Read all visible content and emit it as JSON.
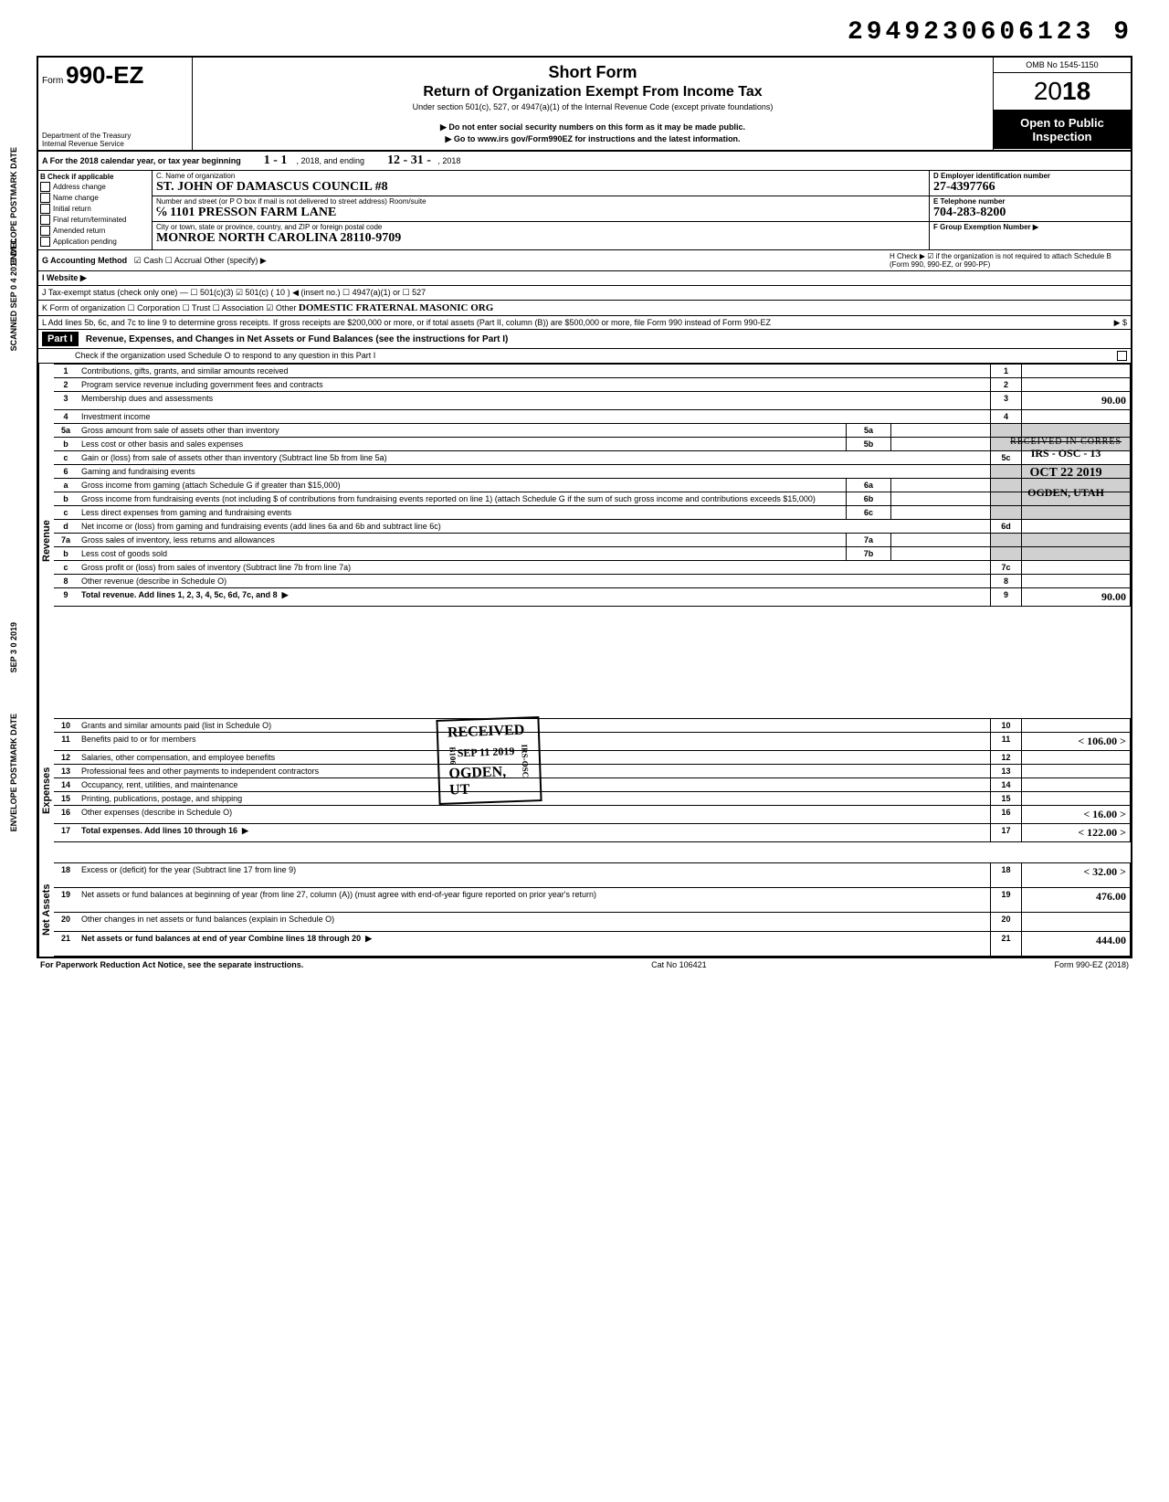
{
  "doc_number": "2949230606123 9",
  "form": {
    "form_label": "Form",
    "form_number": "990-EZ",
    "dept": "Department of the Treasury\nInternal Revenue Service",
    "title": "Short Form",
    "subtitle": "Return of Organization Exempt From Income Tax",
    "under": "Under section 501(c), 527, or 4947(a)(1) of the Internal Revenue Code (except private foundations)",
    "warn": "▶ Do not enter social security numbers on this form as it may be made public.",
    "goto": "▶ Go to www.irs gov/Form990EZ for instructions and the latest information.",
    "omb": "OMB No 1545-1150",
    "year_prefix": "20",
    "year_bold": "18",
    "open": "Open to Public Inspection"
  },
  "row_a": {
    "label": "A For the 2018 calendar year, or tax year beginning",
    "begin": "1 - 1",
    "mid": ", 2018, and ending",
    "end_month": "12 - 31 -",
    "end_year": ", 2018"
  },
  "col_b": {
    "header": "B Check if applicable",
    "items": [
      "Address change",
      "Name change",
      "Initial return",
      "Final return/terminated",
      "Amended return",
      "Application pending"
    ]
  },
  "col_c": {
    "name_label": "C. Name of organization",
    "name": "ST. JOHN OF DAMASCUS COUNCIL #8",
    "addr_label": "Number and street (or P O box if mail is not delivered to street address)     Room/suite",
    "addr": "℅ 1101 PRESSON FARM LANE",
    "city_label": "City or town, state or province, country, and ZIP or foreign postal code",
    "city": "MONROE   NORTH CAROLINA   28110-9709"
  },
  "col_de": {
    "d_label": "D Employer identification number",
    "d_val": "27-4397766",
    "e_label": "E Telephone number",
    "e_val": "704-283-8200",
    "f_label": "F Group Exemption Number ▶",
    "f_val": ""
  },
  "row_g": {
    "label": "G Accounting Method",
    "opts": "☑ Cash   ☐ Accrual   Other (specify) ▶",
    "h": "H Check ▶ ☑ if the organization is not required to attach Schedule B (Form 990, 990-EZ, or 990-PF)"
  },
  "row_i": {
    "label": "I Website ▶"
  },
  "row_j": {
    "label": "J Tax-exempt status (check only one) — ☐ 501(c)(3)   ☑ 501(c) ( 10 ) ◀ (insert no.)  ☐ 4947(a)(1) or  ☐ 527"
  },
  "row_k": {
    "label": "K Form of organization   ☐ Corporation   ☐ Trust   ☐ Association   ☑ Other",
    "other": "DOMESTIC FRATERNAL MASONIC ORG"
  },
  "row_l": {
    "label": "L Add lines 5b, 6c, and 7c to line 9 to determine gross receipts. If gross receipts are $200,000 or more, or if total assets (Part II, column (B)) are $500,000 or more, file Form 990 instead of Form 990-EZ",
    "arrow": "▶  $"
  },
  "part1": {
    "label": "Part I",
    "title": "Revenue, Expenses, and Changes in Net Assets or Fund Balances (see the instructions for Part I)",
    "check": "Check if the organization used Schedule O to respond to any question in this Part I"
  },
  "sections": {
    "revenue": "Revenue",
    "expenses": "Expenses",
    "netassets": "Net Assets"
  },
  "lines": {
    "l1": {
      "n": "1",
      "t": "Contributions, gifts, grants, and similar amounts received",
      "rn": "1",
      "v": ""
    },
    "l2": {
      "n": "2",
      "t": "Program service revenue including government fees and contracts",
      "rn": "2",
      "v": ""
    },
    "l3": {
      "n": "3",
      "t": "Membership dues and assessments",
      "rn": "3",
      "v": "90.00"
    },
    "l4": {
      "n": "4",
      "t": "Investment income",
      "rn": "4",
      "v": ""
    },
    "l5a": {
      "n": "5a",
      "t": "Gross amount from sale of assets other than inventory",
      "mn": "5a",
      "mv": ""
    },
    "l5b": {
      "n": "b",
      "t": "Less cost or other basis and sales expenses",
      "mn": "5b",
      "mv": ""
    },
    "l5c": {
      "n": "c",
      "t": "Gain or (loss) from sale of assets other than inventory (Subtract line 5b from line 5a)",
      "rn": "5c",
      "v": ""
    },
    "l6": {
      "n": "6",
      "t": "Gaming and fundraising events"
    },
    "l6a": {
      "n": "a",
      "t": "Gross income from gaming (attach Schedule G if greater than $15,000)",
      "mn": "6a",
      "mv": ""
    },
    "l6b": {
      "n": "b",
      "t": "Gross income from fundraising events (not including  $                    of contributions from fundraising events reported on line 1) (attach Schedule G if the sum of such gross income and contributions exceeds $15,000)",
      "mn": "6b",
      "mv": ""
    },
    "l6c": {
      "n": "c",
      "t": "Less direct expenses from gaming and fundraising events",
      "mn": "6c",
      "mv": ""
    },
    "l6d": {
      "n": "d",
      "t": "Net income or (loss) from gaming and fundraising events (add lines 6a and 6b and subtract line 6c)",
      "rn": "6d",
      "v": ""
    },
    "l7a": {
      "n": "7a",
      "t": "Gross sales of inventory, less returns and allowances",
      "mn": "7a",
      "mv": ""
    },
    "l7b": {
      "n": "b",
      "t": "Less cost of goods sold",
      "mn": "7b",
      "mv": ""
    },
    "l7c": {
      "n": "c",
      "t": "Gross profit or (loss) from sales of inventory (Subtract line 7b from line 7a)",
      "rn": "7c",
      "v": ""
    },
    "l8": {
      "n": "8",
      "t": "Other revenue (describe in Schedule O)",
      "rn": "8",
      "v": ""
    },
    "l9": {
      "n": "9",
      "t": "Total revenue. Add lines 1, 2, 3, 4, 5c, 6d, 7c, and 8",
      "rn": "9",
      "v": "90.00",
      "bold": true
    },
    "l10": {
      "n": "10",
      "t": "Grants and similar amounts paid (list in Schedule O)",
      "rn": "10",
      "v": ""
    },
    "l11": {
      "n": "11",
      "t": "Benefits paid to or for members",
      "rn": "11",
      "v": "< 106.00 >"
    },
    "l12": {
      "n": "12",
      "t": "Salaries, other compensation, and employee benefits",
      "rn": "12",
      "v": ""
    },
    "l13": {
      "n": "13",
      "t": "Professional fees and other payments to independent contractors",
      "rn": "13",
      "v": ""
    },
    "l14": {
      "n": "14",
      "t": "Occupancy, rent, utilities, and maintenance",
      "rn": "14",
      "v": ""
    },
    "l15": {
      "n": "15",
      "t": "Printing, publications, postage, and shipping",
      "rn": "15",
      "v": ""
    },
    "l16": {
      "n": "16",
      "t": "Other expenses (describe in Schedule O)",
      "rn": "16",
      "v": "< 16.00 >"
    },
    "l17": {
      "n": "17",
      "t": "Total expenses. Add lines 10 through 16",
      "rn": "17",
      "v": "< 122.00 >",
      "bold": true
    },
    "l18": {
      "n": "18",
      "t": "Excess or (deficit) for the year (Subtract line 17 from line 9)",
      "rn": "18",
      "v": "< 32.00 >"
    },
    "l19": {
      "n": "19",
      "t": "Net assets or fund balances at beginning of year (from line 27, column (A)) (must agree with end-of-year figure reported on prior year's return)",
      "rn": "19",
      "v": "476.00"
    },
    "l20": {
      "n": "20",
      "t": "Other changes in net assets or fund balances (explain in Schedule O)",
      "rn": "20",
      "v": ""
    },
    "l21": {
      "n": "21",
      "t": "Net assets or fund balances at end of year Combine lines 18 through 20",
      "rn": "21",
      "v": "444.00",
      "bold": true
    }
  },
  "stamps": {
    "received1": {
      "title": "RECEIVED",
      "date": "SEP 11 2019",
      "loc": "OGDEN, UT",
      "side1": "B106",
      "side2": "IRS-OSC"
    },
    "corres": {
      "l1": "RECEIVED IN CORRES",
      "l2": "IRS - OSC - 13",
      "l3": "OCT 22 2019",
      "l4": "OGDEN, UTAH"
    }
  },
  "vert": {
    "s1": "SCANNED SEP 0 4 2019 DFC",
    "s2": "ENVELOPE POSTMARK DATE",
    "s3": "SEP 3 0 2019",
    "s4": "ENVELOPE POSTMARK DATE"
  },
  "footer": {
    "left": "For Paperwork Reduction Act Notice, see the separate instructions.",
    "mid": "Cat No 106421",
    "right": "Form 990-EZ (2018)"
  }
}
